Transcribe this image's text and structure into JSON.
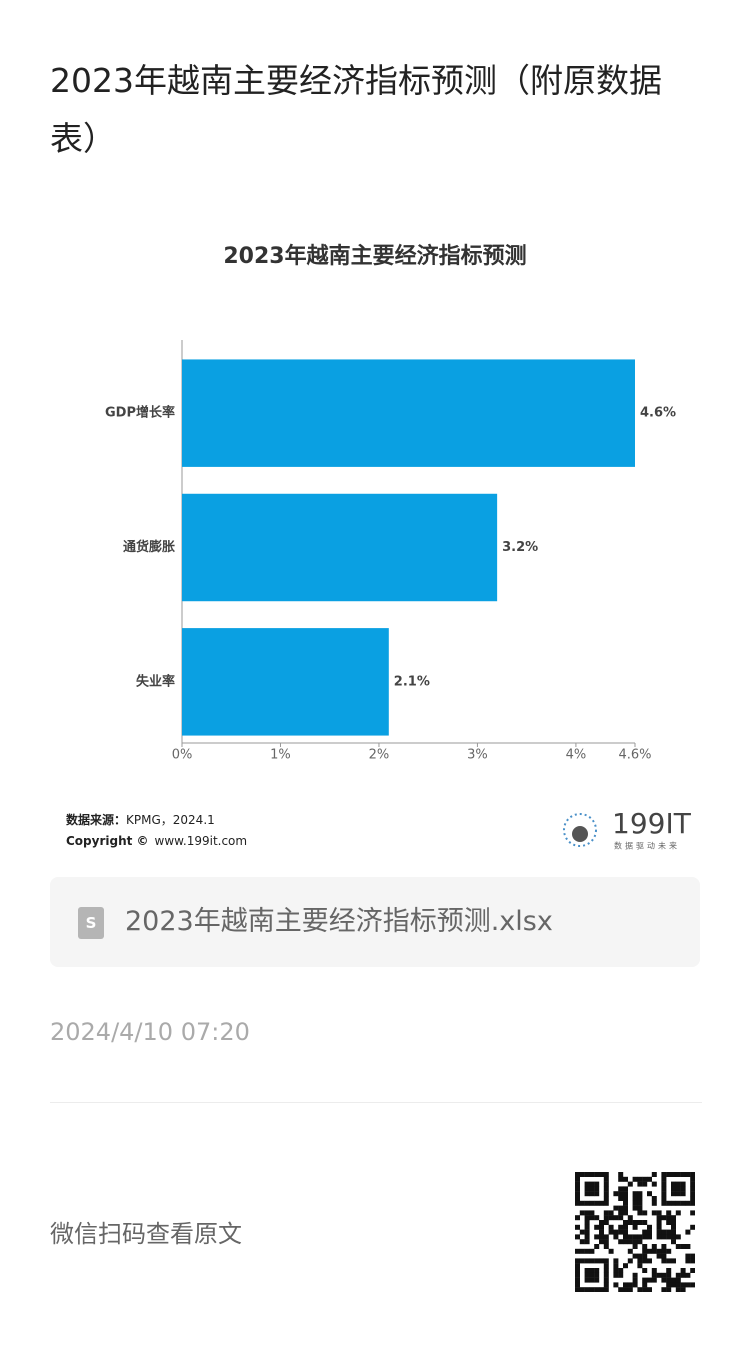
{
  "header": {
    "title": "2023年越南主要经济指标预测（附原数据表）"
  },
  "chart_data": {
    "type": "bar",
    "orientation": "horizontal",
    "title": "2023年越南主要经济指标预测",
    "categories": [
      "GDP增长率",
      "通货膨胀",
      "失业率"
    ],
    "values": [
      4.6,
      3.2,
      2.1
    ],
    "value_labels": [
      "4.6%",
      "3.2%",
      "2.1%"
    ],
    "color": "#0aa0e2",
    "xlim": [
      0,
      4.6
    ],
    "xticks": [
      {
        "value": 0,
        "label": "0%"
      },
      {
        "value": 1,
        "label": "1%"
      },
      {
        "value": 2,
        "label": "2%"
      },
      {
        "value": 3,
        "label": "3%"
      },
      {
        "value": 4,
        "label": "4%"
      },
      {
        "value": 4.6,
        "label": "4.6%"
      }
    ],
    "grid": false
  },
  "source": {
    "label": "数据来源：",
    "value": "KPMG，2024.1"
  },
  "copyright": {
    "label": "Copyright ©",
    "value": "www.199it.com"
  },
  "logo": {
    "name": "199IT",
    "slogan": "数据驱动未来"
  },
  "attachment": {
    "icon": "S",
    "filename": "2023年越南主要经济指标预测.xlsx"
  },
  "date": "2024/4/10 07:20",
  "footer": {
    "text": "微信扫码查看原文"
  }
}
